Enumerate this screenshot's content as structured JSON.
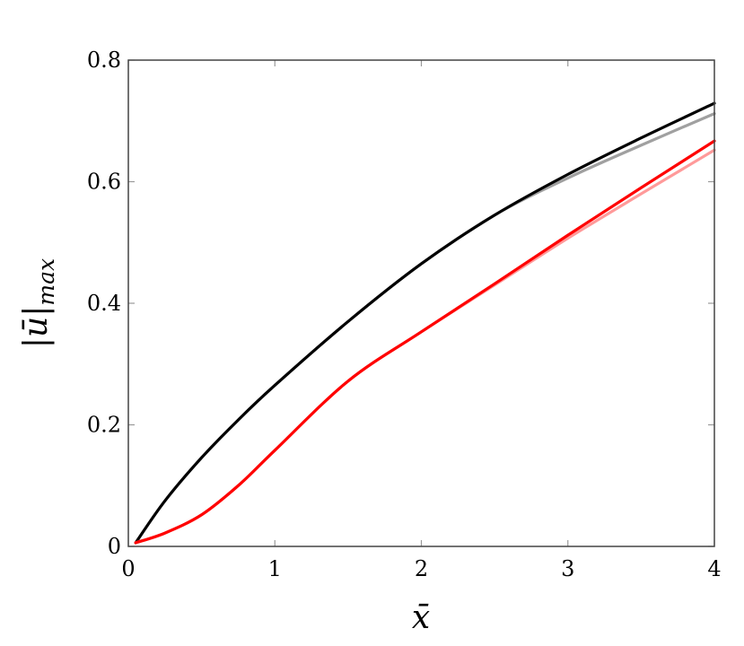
{
  "chart_data": {
    "type": "line",
    "title": "",
    "xlabel": "x̄",
    "ylabel_main": "|ū|",
    "ylabel_sub": "max",
    "xlim": [
      0,
      4
    ],
    "ylim": [
      0,
      0.8
    ],
    "xticks": [
      "0",
      "1",
      "2",
      "3",
      "4"
    ],
    "yticks": [
      "0",
      "0.2",
      "0.4",
      "0.6",
      "0.8"
    ],
    "grid": false,
    "x": [
      0.05,
      0.25,
      0.5,
      0.75,
      1,
      1.5,
      2,
      2.5,
      3,
      3.5,
      4
    ],
    "series": [
      {
        "color": "#a0a0a0",
        "values": [
          0.006,
          0.075,
          0.146,
          0.208,
          0.265,
          0.37,
          0.465,
          0.545,
          0.606,
          0.66,
          0.712
        ]
      },
      {
        "color": "#000000",
        "values": [
          0.006,
          0.075,
          0.146,
          0.208,
          0.265,
          0.37,
          0.465,
          0.545,
          0.612,
          0.672,
          0.729
        ]
      },
      {
        "color": "#ff9a9a",
        "values": [
          0.006,
          0.022,
          0.052,
          0.1,
          0.158,
          0.272,
          0.353,
          0.43,
          0.507,
          0.58,
          0.652
        ]
      },
      {
        "color": "#ff0000",
        "values": [
          0.006,
          0.022,
          0.052,
          0.1,
          0.158,
          0.272,
          0.353,
          0.432,
          0.512,
          0.59,
          0.667
        ]
      }
    ]
  }
}
